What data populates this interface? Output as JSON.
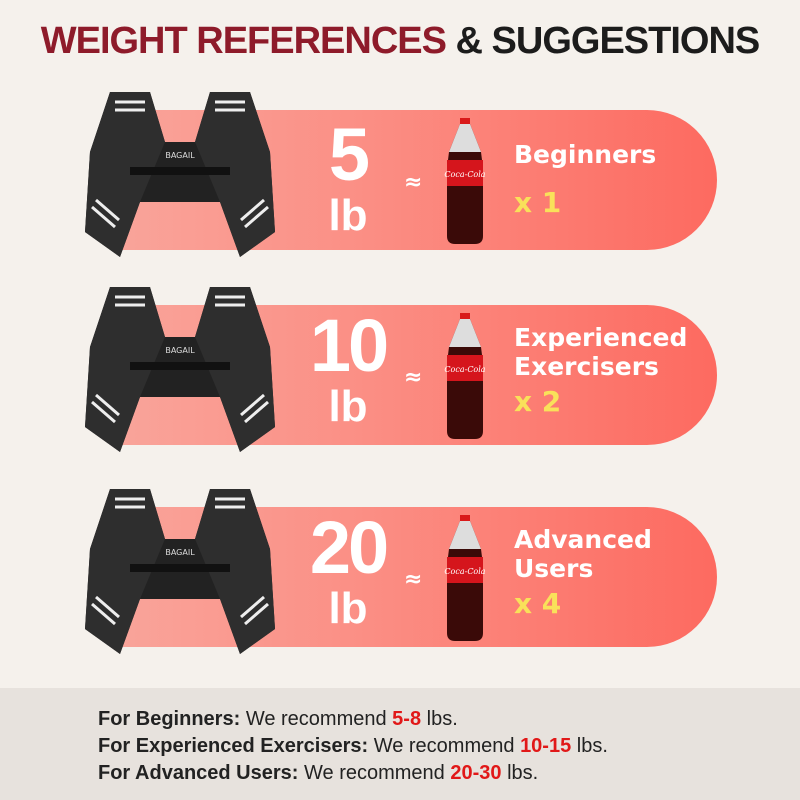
{
  "title": {
    "part1": "WEIGHT REFERENCES",
    "part2": "& SUGGESTIONS"
  },
  "colors": {
    "title_red": "#8e1b2a",
    "pill_start": "#f9a49a",
    "pill_end": "#fd6a60",
    "multiplier_yellow": "#f9e15a",
    "recommend_red": "#e11818"
  },
  "rows": [
    {
      "weight": "5",
      "unit": "lb",
      "approx": "≈",
      "brand_label": "Coca-Cola",
      "category": [
        "Beginners"
      ],
      "multiplier": "x 1"
    },
    {
      "weight": "10",
      "unit": "lb",
      "approx": "≈",
      "brand_label": "Coca-Cola",
      "category": [
        "Experienced",
        "Exercisers"
      ],
      "multiplier": "x 2"
    },
    {
      "weight": "20",
      "unit": "lb",
      "approx": "≈",
      "brand_label": "Coca-Cola",
      "category": [
        "Advanced",
        "Users"
      ],
      "multiplier": "x 4"
    }
  ],
  "vest_brand": "BAGAIL",
  "footer": [
    {
      "label": "For Beginners:",
      "text": "We recommend",
      "range": "5-8",
      "unit": "lbs."
    },
    {
      "label": "For Experienced Exercisers:",
      "text": "We recommend",
      "range": "10-15",
      "unit": "lbs."
    },
    {
      "label": "For Advanced Users:",
      "text": "We recommend",
      "range": "20-30",
      "unit": "lbs."
    }
  ]
}
